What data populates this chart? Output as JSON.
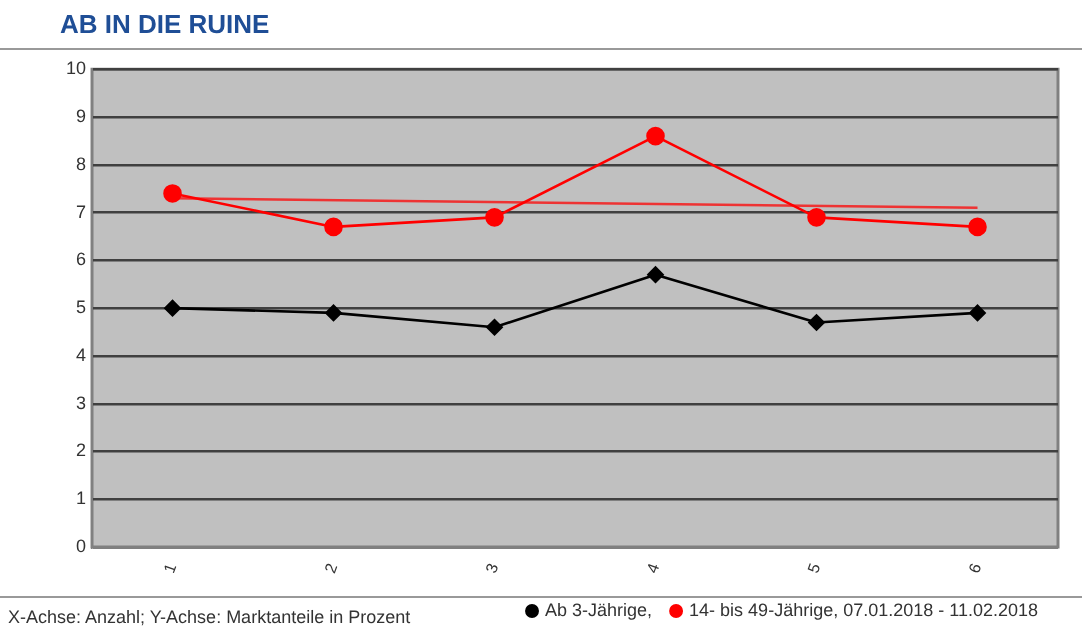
{
  "chart_data": {
    "type": "line",
    "title": "AB IN DIE RUINE",
    "categories": [
      "1",
      "2",
      "3",
      "4",
      "5",
      "6"
    ],
    "series": [
      {
        "name": "Ab 3-Jährige,",
        "color": "#000000",
        "marker": "diamond",
        "values": [
          5.0,
          4.9,
          4.6,
          5.7,
          4.7,
          4.9
        ]
      },
      {
        "name": "14- bis 49-Jährige, 07.01.2018 - 11.02.2018",
        "color": "#ff0000",
        "marker": "circle",
        "values": [
          7.4,
          6.7,
          6.9,
          8.6,
          6.9,
          6.7
        ]
      },
      {
        "type": "line",
        "color": "#ee3333",
        "marker": "none",
        "x": [
          "1",
          "6"
        ],
        "values": [
          7.3,
          7.1
        ]
      }
    ],
    "ylim": [
      0,
      10
    ],
    "yticks": [
      0,
      1,
      2,
      3,
      4,
      5,
      6,
      7,
      8,
      9,
      10
    ],
    "grid": "y",
    "legend": "bottom",
    "annotations": [
      "X-Achse: Anzahl; Y-Achse: Marktanteile in Prozent"
    ]
  }
}
